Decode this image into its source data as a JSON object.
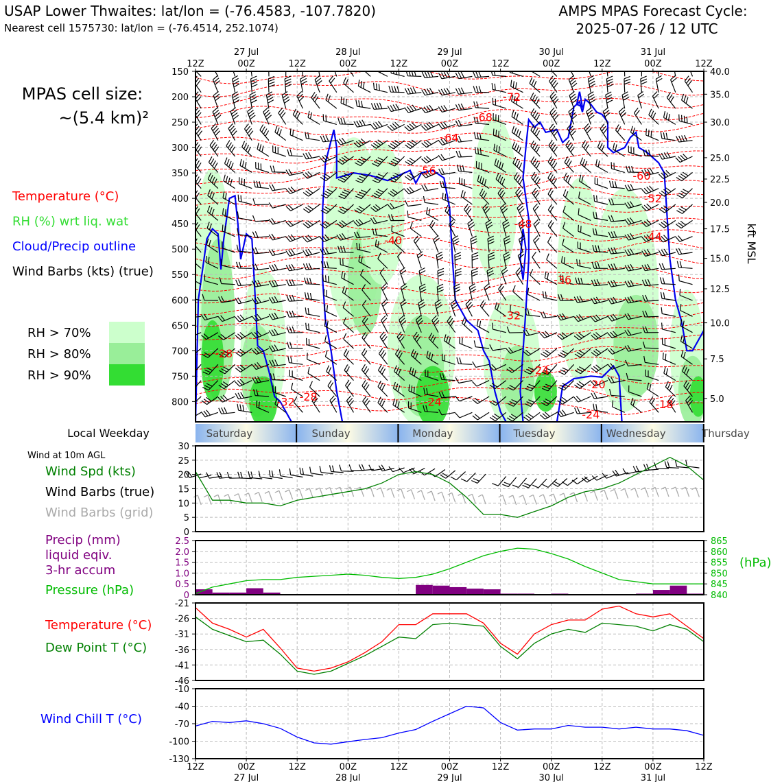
{
  "header": {
    "title_left": "USAP Lower Thwaites: lat/lon = (-76.4583, -107.7820)",
    "subtitle_left": "Nearest cell 1575730: lat/lon = (-76.4514, 252.1074)",
    "title_right_line1": "AMPS MPAS Forecast Cycle:",
    "title_right_line2": "2025-07-26 / 12 UTC"
  },
  "sidebar": {
    "cell_size_line1": "MPAS cell size:",
    "cell_size_line2": "~(5.4 km)²",
    "legend": [
      {
        "label": "Temperature (°C)",
        "color": "#ff0000"
      },
      {
        "label": "RH (%) wrt liq. wat",
        "color": "#33dd33"
      },
      {
        "label": "Cloud/Precip outline",
        "color": "#0000ff"
      },
      {
        "label": "Wind Barbs (kts) (true)",
        "color": "#000000"
      }
    ],
    "rh_levels": [
      {
        "label": "RH > 70%",
        "color": "#ccffcc"
      },
      {
        "label": "RH > 80%",
        "color": "#99ee99"
      },
      {
        "label": "RH > 90%",
        "color": "#33dd33"
      }
    ]
  },
  "time_axis": {
    "top_labels": [
      "12Z",
      "00Z",
      "12Z",
      "00Z",
      "12Z",
      "00Z",
      "12Z",
      "00Z",
      "12Z",
      "00Z",
      "12Z"
    ],
    "date_labels": [
      "27 Jul",
      "28 Jul",
      "29 Jul",
      "30 Jul",
      "31 Jul"
    ]
  },
  "weekday_row": {
    "label": "Local Weekday",
    "days": [
      "Saturday",
      "Sunday",
      "Monday",
      "Tuesday",
      "Wednesday",
      "Thursday"
    ]
  },
  "panels": {
    "wind_title": "Wind at 10m AGL",
    "wind_legend": [
      {
        "label": "Wind Spd (kts)",
        "color": "#008000"
      },
      {
        "label": "Wind Barbs (true)",
        "color": "#000000"
      },
      {
        "label": "Wind Barbs (grid)",
        "color": "#aaaaaa"
      }
    ],
    "precip_legend": [
      {
        "label": "Precip (mm)",
        "color": "#800080"
      },
      {
        "label": "liquid eqiv.",
        "color": "#800080"
      },
      {
        "label": "3-hr accum",
        "color": "#800080"
      },
      {
        "label": "Pressure (hPa)",
        "color": "#00bb00"
      }
    ],
    "pressure_unit": "(hPa)",
    "temp_legend": [
      {
        "label": "Temperature (°C)",
        "color": "#ff0000"
      },
      {
        "label": "Dew Point T (°C)",
        "color": "#008000"
      }
    ],
    "chill_legend": [
      {
        "label": "Wind Chill T (°C)",
        "color": "#0000ff"
      }
    ],
    "kft_label": "kft MSL"
  },
  "chart_data": [
    {
      "type": "heatmap",
      "name": "cross-section",
      "y_pressure_ticks": [
        150,
        200,
        250,
        300,
        350,
        400,
        450,
        500,
        550,
        600,
        650,
        700,
        750,
        800
      ],
      "y_right_kft_ticks": [
        {
          "p": 150,
          "label": "40.0"
        },
        {
          "p": 195,
          "label": "35.0"
        },
        {
          "p": 250,
          "label": "30.0"
        },
        {
          "p": 320,
          "label": "25.0"
        },
        {
          "p": 362,
          "label": "22.5"
        },
        {
          "p": 408,
          "label": "20.0"
        },
        {
          "p": 460,
          "label": "17.5"
        },
        {
          "p": 518,
          "label": "15.0"
        },
        {
          "p": 578,
          "label": "12.5"
        },
        {
          "p": 645,
          "label": "10.0"
        },
        {
          "p": 716,
          "label": "7.5"
        },
        {
          "p": 794,
          "label": "5.0"
        }
      ],
      "ylim": [
        150,
        840
      ],
      "temperature_labels": [
        {
          "t": 56,
          "p": 200,
          "text": "-72"
        },
        {
          "t": 51,
          "p": 240,
          "text": "-68"
        },
        {
          "t": 45,
          "p": 280,
          "text": "-64"
        },
        {
          "t": 41,
          "p": 345,
          "text": "-56"
        },
        {
          "t": 79,
          "p": 355,
          "text": "-60"
        },
        {
          "t": 81,
          "p": 400,
          "text": "-52"
        },
        {
          "t": 58,
          "p": 450,
          "text": "-48"
        },
        {
          "t": 81,
          "p": 475,
          "text": "-44"
        },
        {
          "t": 35,
          "p": 482,
          "text": "-40"
        },
        {
          "t": 65,
          "p": 560,
          "text": "-36"
        },
        {
          "t": 56,
          "p": 630,
          "text": "-32"
        },
        {
          "t": 5,
          "p": 705,
          "text": "-28"
        },
        {
          "t": 61,
          "p": 738,
          "text": "-24"
        },
        {
          "t": 71,
          "p": 766,
          "text": "-20"
        },
        {
          "t": 20,
          "p": 790,
          "text": "-28"
        },
        {
          "t": 16,
          "p": 800,
          "text": "-32"
        },
        {
          "t": 42,
          "p": 800,
          "text": "-24"
        },
        {
          "t": 70,
          "p": 825,
          "text": "-24"
        },
        {
          "t": 83,
          "p": 805,
          "text": "-18"
        }
      ]
    },
    {
      "type": "line",
      "name": "wind-speed",
      "x_hours": [
        0,
        3,
        6,
        9,
        12,
        15,
        18,
        21,
        24,
        27,
        30,
        33,
        36,
        39,
        42,
        45,
        48,
        51,
        54,
        57,
        60,
        63,
        66,
        69,
        72,
        75,
        78,
        81,
        84,
        87,
        90
      ],
      "series": [
        {
          "name": "Wind Spd (kts)",
          "values": [
            21,
            11,
            11,
            10,
            10,
            9,
            11,
            12,
            13,
            14,
            15,
            17,
            20,
            21,
            20,
            17,
            12,
            6,
            6,
            5,
            7,
            9,
            12,
            14,
            15,
            17,
            20,
            23,
            26,
            23,
            18
          ]
        }
      ],
      "ylim": [
        0,
        30
      ],
      "yticks": [
        0,
        5,
        10,
        15,
        20,
        25,
        30
      ]
    },
    {
      "type": "bar",
      "name": "precip",
      "x_hours": [
        1.5,
        4.5,
        7.5,
        10.5,
        13.5,
        16.5,
        19.5,
        22.5,
        25.5,
        28.5,
        31.5,
        34.5,
        37.5,
        40.5,
        43.5,
        46.5,
        49.5,
        52.5,
        55.5,
        58.5,
        61.5,
        64.5,
        67.5,
        70.5,
        73.5,
        76.5,
        79.5,
        82.5,
        85.5,
        88.5
      ],
      "values": [
        0.25,
        0.1,
        0.1,
        0.3,
        0.1,
        0,
        0,
        0,
        0,
        0,
        0,
        0,
        0,
        0.45,
        0.42,
        0.35,
        0.28,
        0.25,
        0.05,
        0.05,
        0,
        0.05,
        0,
        0,
        0,
        0,
        0.05,
        0.22,
        0.42,
        0.05
      ],
      "ylim": [
        0,
        2.5
      ],
      "yticks": [
        0,
        0.5,
        1.0,
        1.5,
        2.0,
        2.5
      ],
      "ytick_labels": [
        "0",
        "0.5",
        "1.0",
        "1.5",
        "2.0",
        "2.5"
      ],
      "pressure": {
        "x_hours": [
          0,
          3,
          6,
          9,
          12,
          15,
          18,
          21,
          24,
          27,
          30,
          33,
          36,
          39,
          42,
          45,
          48,
          51,
          54,
          57,
          60,
          63,
          66,
          69,
          72,
          75,
          78,
          81,
          84,
          87,
          90
        ],
        "values": [
          840.5,
          843.5,
          845,
          846.5,
          847,
          847,
          848,
          848.5,
          849,
          849.5,
          849,
          848,
          847.5,
          848,
          849.5,
          852,
          855,
          858,
          860,
          861.5,
          861,
          859,
          856.5,
          853,
          850,
          847,
          846,
          845,
          845,
          845,
          845
        ],
        "ylim": [
          840,
          865
        ],
        "yticks": [
          840,
          845,
          850,
          855,
          860,
          865
        ]
      }
    },
    {
      "type": "line",
      "name": "temperature",
      "x_hours": [
        0,
        3,
        6,
        9,
        12,
        15,
        18,
        21,
        24,
        27,
        30,
        33,
        36,
        39,
        42,
        45,
        48,
        51,
        54,
        57,
        60,
        63,
        66,
        69,
        72,
        75,
        78,
        81,
        84,
        87,
        90
      ],
      "series": [
        {
          "name": "Temperature (°C)",
          "values": [
            -22.5,
            -27.5,
            -29.5,
            -32,
            -29.5,
            -35.5,
            -42,
            -43,
            -42,
            -40,
            -37,
            -33.5,
            -28,
            -28,
            -24.5,
            -24.5,
            -24.5,
            -27.5,
            -34,
            -37.5,
            -31,
            -28,
            -26.5,
            -26.5,
            -23,
            -22,
            -24.5,
            -25.5,
            -24.5,
            -28.5,
            -32.5
          ]
        },
        {
          "name": "Dew Point T (°C)",
          "values": [
            -25.5,
            -29.5,
            -31.5,
            -33.5,
            -33,
            -37.5,
            -43,
            -44,
            -43,
            -40.5,
            -38,
            -35,
            -32,
            -32.5,
            -28,
            -27.5,
            -28,
            -28.5,
            -35,
            -39,
            -34,
            -31,
            -29.5,
            -30.5,
            -27.5,
            -28,
            -28.5,
            -30,
            -28,
            -29.5,
            -33.5
          ]
        }
      ],
      "ylim": [
        -46,
        -21
      ],
      "yticks": [
        -46,
        -41,
        -36,
        -31,
        -26,
        -21
      ]
    },
    {
      "type": "line",
      "name": "wind-chill",
      "x_hours": [
        0,
        3,
        6,
        9,
        12,
        15,
        18,
        21,
        24,
        27,
        30,
        33,
        36,
        39,
        42,
        45,
        48,
        51,
        54,
        57,
        60,
        63,
        66,
        69,
        72,
        75,
        78,
        81,
        84,
        87,
        90
      ],
      "series": [
        {
          "name": "Wind Chill T (°C)",
          "values": [
            -74,
            -66,
            -68,
            -65,
            -70,
            -78,
            -93,
            -103,
            -105,
            -101,
            -97,
            -94,
            -86,
            -80,
            -66,
            -53,
            -40,
            -43,
            -68,
            -81,
            -79,
            -79,
            -73,
            -76,
            -76,
            -79,
            -76,
            -79,
            -79,
            -82,
            -90
          ]
        }
      ],
      "ylim": [
        -130,
        -10
      ],
      "yticks": [
        -130,
        -100,
        -70,
        -40,
        -10
      ]
    }
  ]
}
